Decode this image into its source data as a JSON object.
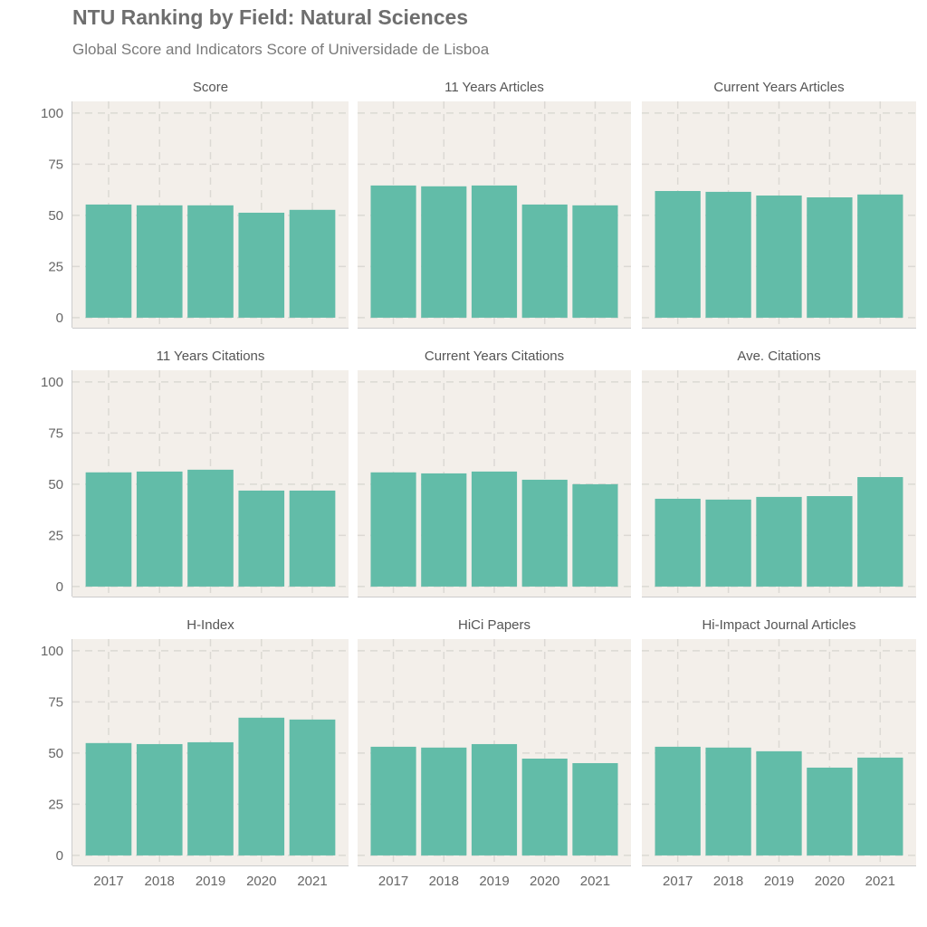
{
  "title": "NTU Ranking by Field: Natural Sciences",
  "subtitle": "Global Score and Indicators Score of Universidade de Lisboa",
  "colors": {
    "bar": "#62bca8",
    "panel": "#f3efea",
    "grid": "#dcd9d4"
  },
  "chart_data": {
    "type": "bar",
    "categories": [
      "2017",
      "2018",
      "2019",
      "2020",
      "2021"
    ],
    "ylim": [
      0,
      100
    ],
    "yticks": [
      "0",
      "25",
      "50",
      "75",
      "100"
    ],
    "panels": [
      {
        "name": "Score",
        "values": [
          55.3,
          54.9,
          54.9,
          51.3,
          52.7
        ]
      },
      {
        "name": "11 Years Articles",
        "values": [
          64.6,
          64.2,
          64.6,
          55.3,
          54.9
        ]
      },
      {
        "name": "Current Years Articles",
        "values": [
          61.9,
          61.5,
          59.7,
          58.8,
          60.2
        ]
      },
      {
        "name": "11 Years Citations",
        "values": [
          55.8,
          56.2,
          57.1,
          46.9,
          46.9
        ]
      },
      {
        "name": "Current Years Citations",
        "values": [
          55.8,
          55.3,
          56.2,
          52.2,
          50.0
        ]
      },
      {
        "name": "Ave. Citations",
        "values": [
          42.9,
          42.5,
          43.8,
          44.2,
          53.5
        ]
      },
      {
        "name": "H-Index",
        "values": [
          54.9,
          54.4,
          55.3,
          67.3,
          66.4
        ]
      },
      {
        "name": "HiCi Papers",
        "values": [
          53.1,
          52.7,
          54.4,
          47.3,
          45.1
        ]
      },
      {
        "name": "Hi-Impact Journal Articles",
        "values": [
          53.1,
          52.7,
          50.9,
          42.9,
          47.8
        ]
      }
    ]
  }
}
